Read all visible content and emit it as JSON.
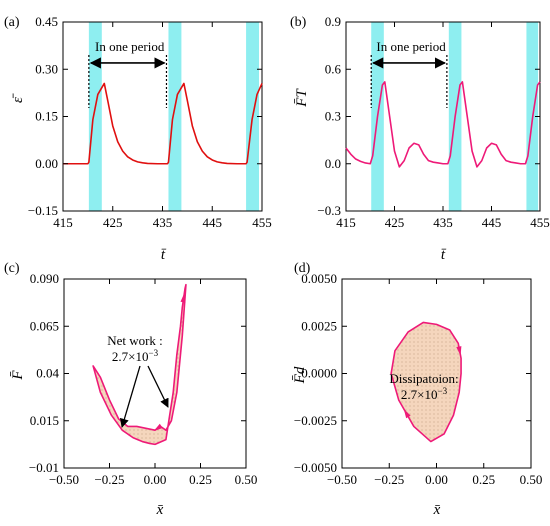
{
  "colors": {
    "band": "#8eeef0",
    "curve_red": "#e01010",
    "curve_pink": "#ee1a78",
    "fill": "#f5d6bd",
    "axis": "#000000"
  },
  "chart_data": [
    {
      "id": "a",
      "type": "line",
      "panel_label": "(a)",
      "xlabel": "t̄",
      "ylabel": "ε̄",
      "xlim": [
        415,
        455
      ],
      "ylim": [
        -0.15,
        0.45
      ],
      "xticks": [
        "415",
        "425",
        "435",
        "445",
        "455"
      ],
      "xtick_values": [
        415,
        425,
        435,
        445,
        455
      ],
      "yticks": [
        "−0.15",
        "0.00",
        "0.15",
        "0.30",
        "0.45"
      ],
      "ytick_values": [
        -0.15,
        0,
        0.15,
        0.3,
        0.45
      ],
      "shaded_bands": [
        [
          420.2,
          422.8
        ],
        [
          436.2,
          438.8
        ],
        [
          451.8,
          454.4
        ]
      ],
      "period_text": "In one period",
      "period_arrow": {
        "x_start": 420.2,
        "x_end": 435.8,
        "y": 0.32
      },
      "series": [
        {
          "color_key": "curve_red",
          "x": [
            415,
            420,
            420.2,
            421,
            422,
            423.3,
            424,
            425,
            426,
            427,
            428,
            429,
            430,
            431,
            432,
            434,
            436,
            436.2,
            437,
            438,
            439.3,
            440,
            441,
            442,
            443,
            444,
            445,
            446,
            447,
            448,
            450,
            451.8,
            452,
            453,
            454,
            455
          ],
          "y": [
            0,
            0,
            0.005,
            0.14,
            0.22,
            0.255,
            0.2,
            0.12,
            0.07,
            0.04,
            0.022,
            0.012,
            0.006,
            0.003,
            0.001,
            0,
            0,
            0.005,
            0.14,
            0.22,
            0.255,
            0.2,
            0.12,
            0.07,
            0.04,
            0.022,
            0.012,
            0.006,
            0.003,
            0.001,
            0,
            0,
            0.005,
            0.14,
            0.22,
            0.255
          ]
        }
      ]
    },
    {
      "id": "b",
      "type": "line",
      "panel_label": "(b)",
      "xlabel": "t̄",
      "ylabel": "F̄T",
      "xlim": [
        415,
        455
      ],
      "ylim": [
        -0.3,
        0.9
      ],
      "xticks": [
        "415",
        "425",
        "435",
        "445",
        "455"
      ],
      "xtick_values": [
        415,
        425,
        435,
        445,
        455
      ],
      "yticks": [
        "−0.3",
        "0.0",
        "0.3",
        "0.6",
        "0.9"
      ],
      "ytick_values": [
        -0.3,
        0,
        0.3,
        0.6,
        0.9
      ],
      "shaded_bands": [
        [
          420.2,
          422.8
        ],
        [
          436.2,
          438.8
        ],
        [
          452.2,
          454.6
        ]
      ],
      "period_text": "In one period",
      "period_arrow": {
        "x_start": 420.2,
        "x_end": 435.8,
        "y": 0.64
      },
      "series": [
        {
          "color_key": "curve_pink",
          "x": [
            415,
            416,
            417,
            418,
            419,
            420,
            420.5,
            421.5,
            422.5,
            423,
            424,
            425,
            426,
            427,
            428,
            429,
            430,
            431,
            432,
            433,
            434,
            435,
            436,
            436.5,
            437.5,
            438.5,
            439,
            440,
            441,
            442,
            443,
            444,
            445,
            446,
            447,
            448,
            449,
            450,
            451,
            452,
            452.5,
            453.5,
            454.5,
            455
          ],
          "y": [
            0.1,
            0.06,
            0.03,
            0.015,
            0.005,
            0.0,
            0.05,
            0.3,
            0.5,
            0.52,
            0.3,
            0.08,
            -0.02,
            0.02,
            0.1,
            0.13,
            0.12,
            0.06,
            0.02,
            0.01,
            0.005,
            0.0,
            0.0,
            0.05,
            0.3,
            0.5,
            0.52,
            0.3,
            0.08,
            -0.02,
            0.02,
            0.1,
            0.13,
            0.12,
            0.06,
            0.02,
            0.01,
            0.005,
            0.0,
            0.0,
            0.05,
            0.3,
            0.5,
            0.52
          ]
        }
      ]
    },
    {
      "id": "c",
      "type": "line",
      "panel_label": "(c)",
      "xlabel": "x̄",
      "ylabel": "F̄",
      "xlim": [
        -0.5,
        0.5
      ],
      "ylim": [
        -0.01,
        0.09
      ],
      "xticks": [
        "−0.50",
        "−0.25",
        "0.00",
        "0.25",
        "0.50"
      ],
      "xtick_values": [
        -0.5,
        -0.25,
        0,
        0.25,
        0.5
      ],
      "yticks": [
        "−0.01",
        "0.015",
        "0.04",
        "0.065",
        "0.090"
      ],
      "ytick_values": [
        -0.01,
        0.015,
        0.04,
        0.065,
        0.09
      ],
      "annotation": {
        "line1": "Net work :",
        "line2_base": "2.7×10",
        "line2_exp": "−3"
      },
      "series": [
        {
          "name": "",
          "color_key": "curve_pink",
          "closed": true,
          "x": [
            -0.34,
            -0.3,
            -0.24,
            -0.18,
            -0.12,
            -0.07,
            -0.03,
            0.0,
            0.06,
            0.1,
            0.12,
            0.14,
            0.15,
            0.165,
            0.17,
            0.15,
            0.12,
            0.09,
            0.06,
            0.03,
            0.0,
            -0.05,
            -0.1,
            -0.15,
            -0.2,
            -0.25,
            -0.3
          ],
          "y": [
            0.044,
            0.03,
            0.018,
            0.01,
            0.006,
            0.004,
            0.003,
            0.0025,
            0.005,
            0.03,
            0.05,
            0.065,
            0.075,
            0.085,
            0.087,
            0.06,
            0.03,
            0.015,
            0.01,
            0.012,
            0.01,
            0.011,
            0.012,
            0.012,
            0.016,
            0.026,
            0.038
          ]
        }
      ]
    },
    {
      "id": "d",
      "type": "line",
      "panel_label": "(d)",
      "xlabel": "x̄",
      "ylabel": "F̄d",
      "xlim": [
        -0.5,
        0.5
      ],
      "ylim": [
        -0.005,
        0.005
      ],
      "xticks": [
        "−0.50",
        "−0.25",
        "0.00",
        "0.25",
        "0.50"
      ],
      "xtick_values": [
        -0.5,
        -0.25,
        0,
        0.25,
        0.5
      ],
      "yticks": [
        "−0.0050",
        "−0.0025",
        "0.0000",
        "0.0025",
        "0.0050"
      ],
      "ytick_values": [
        -0.005,
        -0.0025,
        0,
        0.0025,
        0.005
      ],
      "annotation": {
        "line1": "Dissipatoion:",
        "line2_base": "2.7×10",
        "line2_exp": "−3"
      },
      "series": [
        {
          "name": "",
          "color_key": "curve_pink",
          "closed": true,
          "x": [
            0.0,
            0.07,
            0.115,
            0.13,
            0.13,
            0.12,
            0.09,
            0.04,
            -0.03,
            -0.12,
            -0.2,
            -0.24,
            -0.22,
            -0.15,
            -0.07,
            0.0
          ],
          "y": [
            0.0026,
            0.0023,
            0.0016,
            0.0008,
            0.0,
            -0.001,
            -0.0022,
            -0.0032,
            -0.0036,
            -0.0028,
            -0.0014,
            0.0,
            0.0012,
            0.0022,
            0.0027,
            0.0026
          ]
        }
      ]
    }
  ]
}
